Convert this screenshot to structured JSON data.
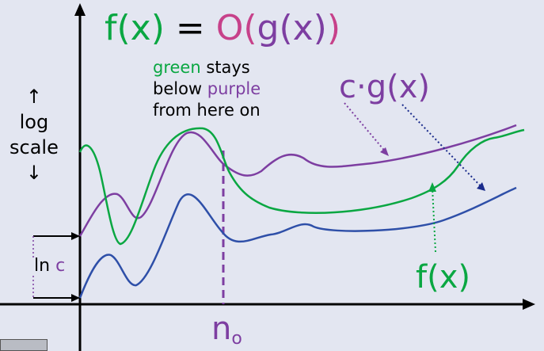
{
  "title": {
    "f": "f(x)",
    "eq": " = ",
    "O": "O(",
    "g": "g(x)",
    "close": ")"
  },
  "note": {
    "green_word": "green",
    "line1_rest": " stays",
    "line2_start": "below ",
    "purple_word": "purple",
    "line3": "from here on"
  },
  "axis_label": {
    "up_arrow": "↑",
    "line1": "log",
    "line2": "scale",
    "down_arrow": "↓"
  },
  "lnc": {
    "ln": "ln ",
    "c": "c"
  },
  "labels": {
    "cg": "c·g(x)",
    "fx": "f(x)",
    "n0_base": "n",
    "n0_sub": "o"
  },
  "colors": {
    "green": "#0aa742",
    "purple": "#7d3ea1",
    "blue": "#2e4fa8",
    "pink": "#c7418a",
    "dark_blue": "#1b2c8c",
    "background": "#e3e6f1"
  }
}
